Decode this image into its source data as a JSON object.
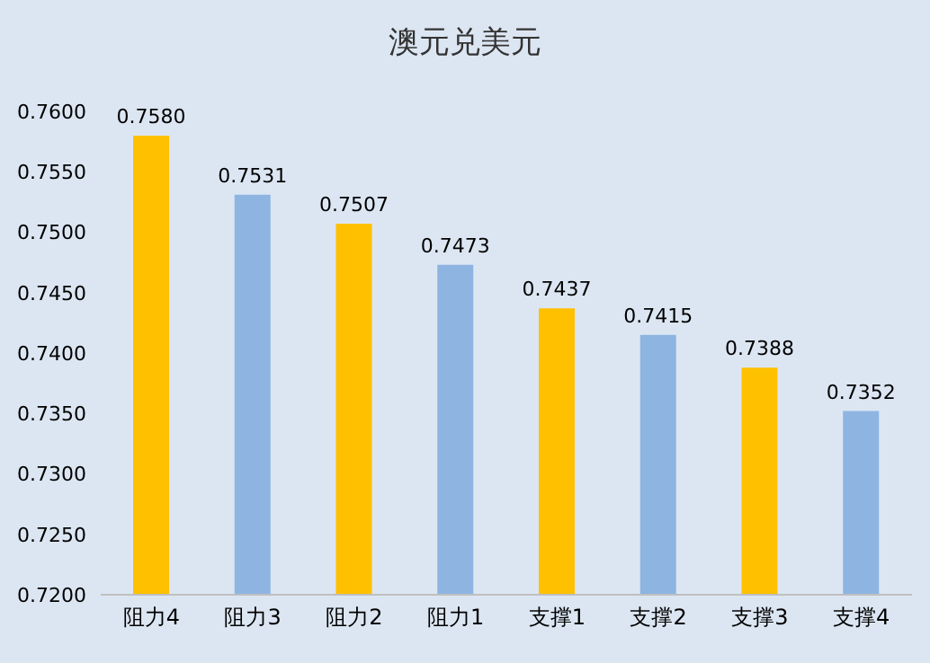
{
  "chart_data": {
    "type": "bar",
    "title": "澳元兑美元",
    "categories": [
      "阻力4",
      "阻力3",
      "阻力2",
      "阻力1",
      "支撑1",
      "支撑2",
      "支撑3",
      "支撑4"
    ],
    "values": [
      0.758,
      0.7531,
      0.7507,
      0.7473,
      0.7437,
      0.7415,
      0.7388,
      0.7352
    ],
    "value_labels": [
      "0.7580",
      "0.7531",
      "0.7507",
      "0.7473",
      "0.7437",
      "0.7415",
      "0.7388",
      "0.7352"
    ],
    "colors": [
      "#ffc000",
      "#8eb4e2",
      "#ffc000",
      "#8eb4e2",
      "#ffc000",
      "#8eb4e2",
      "#ffc000",
      "#8eb4e2"
    ],
    "ylim": [
      0.72,
      0.76
    ],
    "yticks": [
      {
        "value": 0.72,
        "label": "0.7200"
      },
      {
        "value": 0.725,
        "label": "0.7250"
      },
      {
        "value": 0.73,
        "label": "0.7300"
      },
      {
        "value": 0.735,
        "label": "0.7350"
      },
      {
        "value": 0.74,
        "label": "0.7400"
      },
      {
        "value": 0.745,
        "label": "0.7450"
      },
      {
        "value": 0.75,
        "label": "0.7500"
      },
      {
        "value": 0.755,
        "label": "0.7550"
      },
      {
        "value": 0.76,
        "label": "0.7600"
      }
    ],
    "grid": false,
    "legend": false
  }
}
